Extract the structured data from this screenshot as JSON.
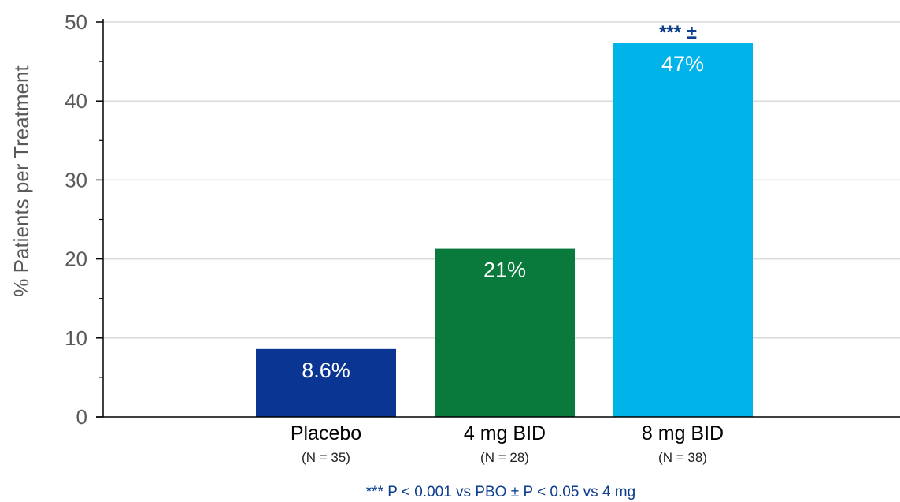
{
  "chart_data": {
    "type": "bar",
    "ylabel": "% Patients per Treatment",
    "ylim": [
      0,
      50
    ],
    "yticks": [
      0,
      10,
      20,
      30,
      40,
      50
    ],
    "grid": true,
    "categories": [
      "Placebo",
      "4 mg BID",
      "8 mg BID"
    ],
    "subtitles": [
      "(N = 35)",
      "(N = 28)",
      "(N = 38)"
    ],
    "values": [
      8.6,
      21.3,
      47.4
    ],
    "data_labels": [
      "8.6%",
      "21%",
      "47%"
    ],
    "colors": [
      "#0a3592",
      "#0a7a3c",
      "#00b4ea"
    ],
    "annotations": [
      {
        "category": "8 mg BID",
        "text": "***  ±",
        "color": "#0d3e8f"
      }
    ],
    "footnote": "*** P < 0.001 vs PBO   ± P < 0.05 vs 4 mg",
    "footnote_color": "#0d3e8f"
  }
}
